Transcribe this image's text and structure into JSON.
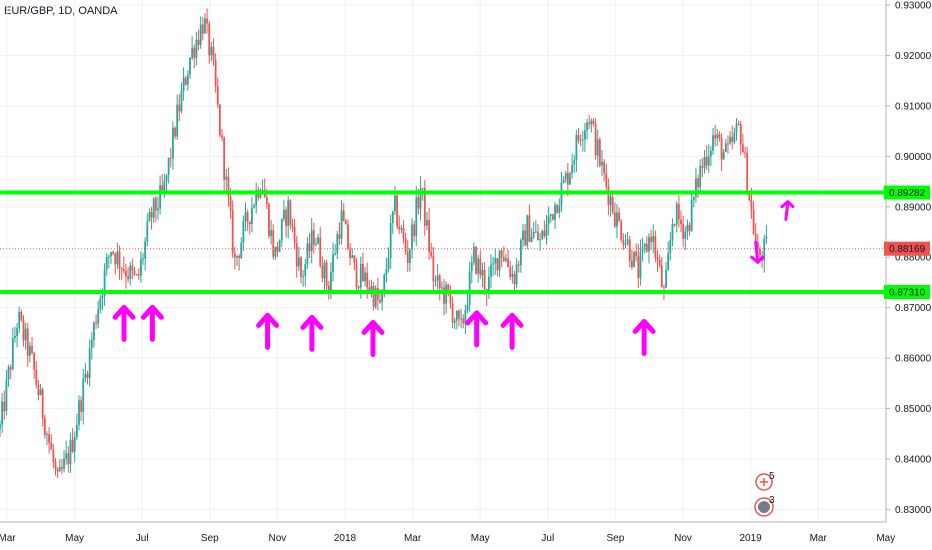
{
  "symbol_title": "EUR/GBP, 1D, OANDA",
  "chart_data": {
    "type": "candlestick",
    "title": "EUR/GBP, 1D, OANDA",
    "y_axis": {
      "position": "right",
      "ylim": [
        0.8275,
        0.931
      ],
      "ticks": [
        "0.93000",
        "0.92000",
        "0.91000",
        "0.90000",
        "0.89000",
        "0.88000",
        "0.87000",
        "0.86000",
        "0.85000",
        "0.84000",
        "0.83000"
      ]
    },
    "x_axis": {
      "ticks": [
        "Mar",
        "May",
        "Jul",
        "Sep",
        "Nov",
        "2018",
        "Mar",
        "May",
        "Jul",
        "Sep",
        "Nov",
        "2019",
        "Mar",
        "May"
      ]
    },
    "grid": true,
    "horizontal_levels": [
      {
        "label": "0.89282",
        "value": 0.89282,
        "color": "#00ff00"
      },
      {
        "label": "0.87310",
        "value": 0.8731,
        "color": "#00ff00"
      }
    ],
    "current_price": {
      "label": "0.88169",
      "value": 0.88169,
      "color": "#ef5350"
    },
    "up_color": "#26a69a",
    "down_color": "#ef5350",
    "arrow_color": "#ff00ff",
    "close_path": [
      [
        0,
        0.846
      ],
      [
        0.02,
        0.868
      ],
      [
        0.035,
        0.86
      ],
      [
        0.05,
        0.848
      ],
      [
        0.065,
        0.835
      ],
      [
        0.08,
        0.842
      ],
      [
        0.095,
        0.855
      ],
      [
        0.11,
        0.87
      ],
      [
        0.125,
        0.882
      ],
      [
        0.14,
        0.878
      ],
      [
        0.155,
        0.875
      ],
      [
        0.17,
        0.888
      ],
      [
        0.185,
        0.893
      ],
      [
        0.2,
        0.908
      ],
      [
        0.215,
        0.92
      ],
      [
        0.23,
        0.927
      ],
      [
        0.24,
        0.918
      ],
      [
        0.255,
        0.895
      ],
      [
        0.265,
        0.879
      ],
      [
        0.28,
        0.888
      ],
      [
        0.295,
        0.896
      ],
      [
        0.31,
        0.88
      ],
      [
        0.325,
        0.89
      ],
      [
        0.34,
        0.876
      ],
      [
        0.355,
        0.885
      ],
      [
        0.37,
        0.874
      ],
      [
        0.385,
        0.888
      ],
      [
        0.4,
        0.877
      ],
      [
        0.415,
        0.875
      ],
      [
        0.43,
        0.87
      ],
      [
        0.445,
        0.89
      ],
      [
        0.46,
        0.88
      ],
      [
        0.475,
        0.894
      ],
      [
        0.49,
        0.875
      ],
      [
        0.505,
        0.872
      ],
      [
        0.52,
        0.865
      ],
      [
        0.535,
        0.88
      ],
      [
        0.55,
        0.874
      ],
      [
        0.565,
        0.882
      ],
      [
        0.58,
        0.876
      ],
      [
        0.595,
        0.886
      ],
      [
        0.61,
        0.883
      ],
      [
        0.625,
        0.89
      ],
      [
        0.64,
        0.896
      ],
      [
        0.655,
        0.905
      ],
      [
        0.665,
        0.908
      ],
      [
        0.68,
        0.897
      ],
      [
        0.695,
        0.888
      ],
      [
        0.71,
        0.882
      ],
      [
        0.72,
        0.877
      ],
      [
        0.735,
        0.885
      ],
      [
        0.75,
        0.872
      ],
      [
        0.76,
        0.889
      ],
      [
        0.775,
        0.885
      ],
      [
        0.79,
        0.897
      ],
      [
        0.805,
        0.904
      ],
      [
        0.82,
        0.9
      ],
      [
        0.835,
        0.906
      ],
      [
        0.845,
        0.893
      ],
      [
        0.855,
        0.88
      ],
      [
        0.865,
        0.8817
      ]
    ],
    "up_arrows": [
      [
        0.14,
        0.8663
      ],
      [
        0.172,
        0.8663
      ],
      [
        0.302,
        0.8647
      ],
      [
        0.352,
        0.8643
      ],
      [
        0.421,
        0.8633
      ],
      [
        0.538,
        0.8652
      ],
      [
        0.578,
        0.8647
      ],
      [
        0.727,
        0.8635
      ]
    ],
    "drawn_arrows": [
      {
        "x": 0.853,
        "y_from": 0.883,
        "y_to": 0.879,
        "dir": "down"
      },
      {
        "x": 0.887,
        "y_from": 0.8875,
        "y_to": 0.891,
        "dir": "up"
      }
    ],
    "badge_counts": [
      "5",
      "3"
    ]
  }
}
